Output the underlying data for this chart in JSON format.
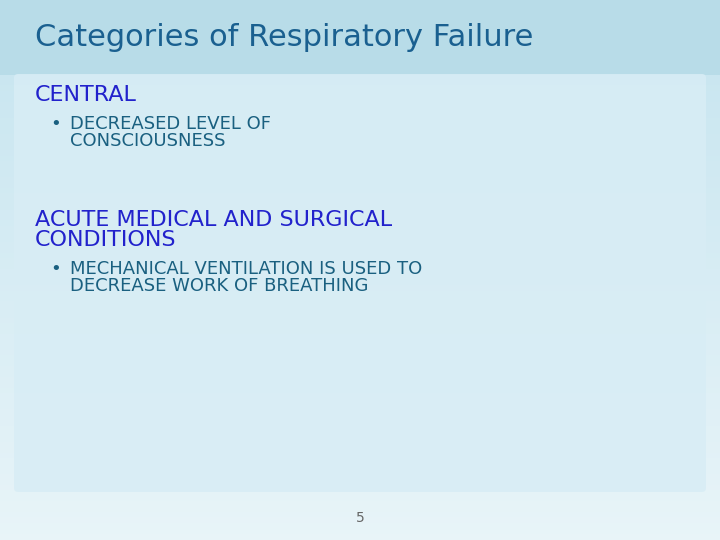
{
  "title": "Categories of Respiratory Failure",
  "title_color": "#1a6090",
  "title_fontsize": 22,
  "heading1": "CENTRAL",
  "heading1_color": "#2222cc",
  "heading1_fontsize": 16,
  "bullet1_line1": "DECREASED LEVEL OF",
  "bullet1_line2": "CONSCIOUSNESS",
  "bullet1_color": "#1a6080",
  "bullet1_fontsize": 13,
  "heading2_line1": "ACUTE MEDICAL AND SURGICAL",
  "heading2_line2": "CONDITIONS",
  "heading2_color": "#2222cc",
  "heading2_fontsize": 16,
  "bullet2_line1": "MECHANICAL VENTILATION IS USED TO",
  "bullet2_line2": "DECREASE WORK OF BREATHING",
  "bullet2_color": "#1a6080",
  "bullet2_fontsize": 13,
  "page_num": "5",
  "page_num_color": "#666666",
  "page_num_fontsize": 10,
  "bg_outer": "#daeef5",
  "title_bar_color": "#b8dde8",
  "content_box_color": "#daeef5",
  "slide_bg": "#cce4ee"
}
